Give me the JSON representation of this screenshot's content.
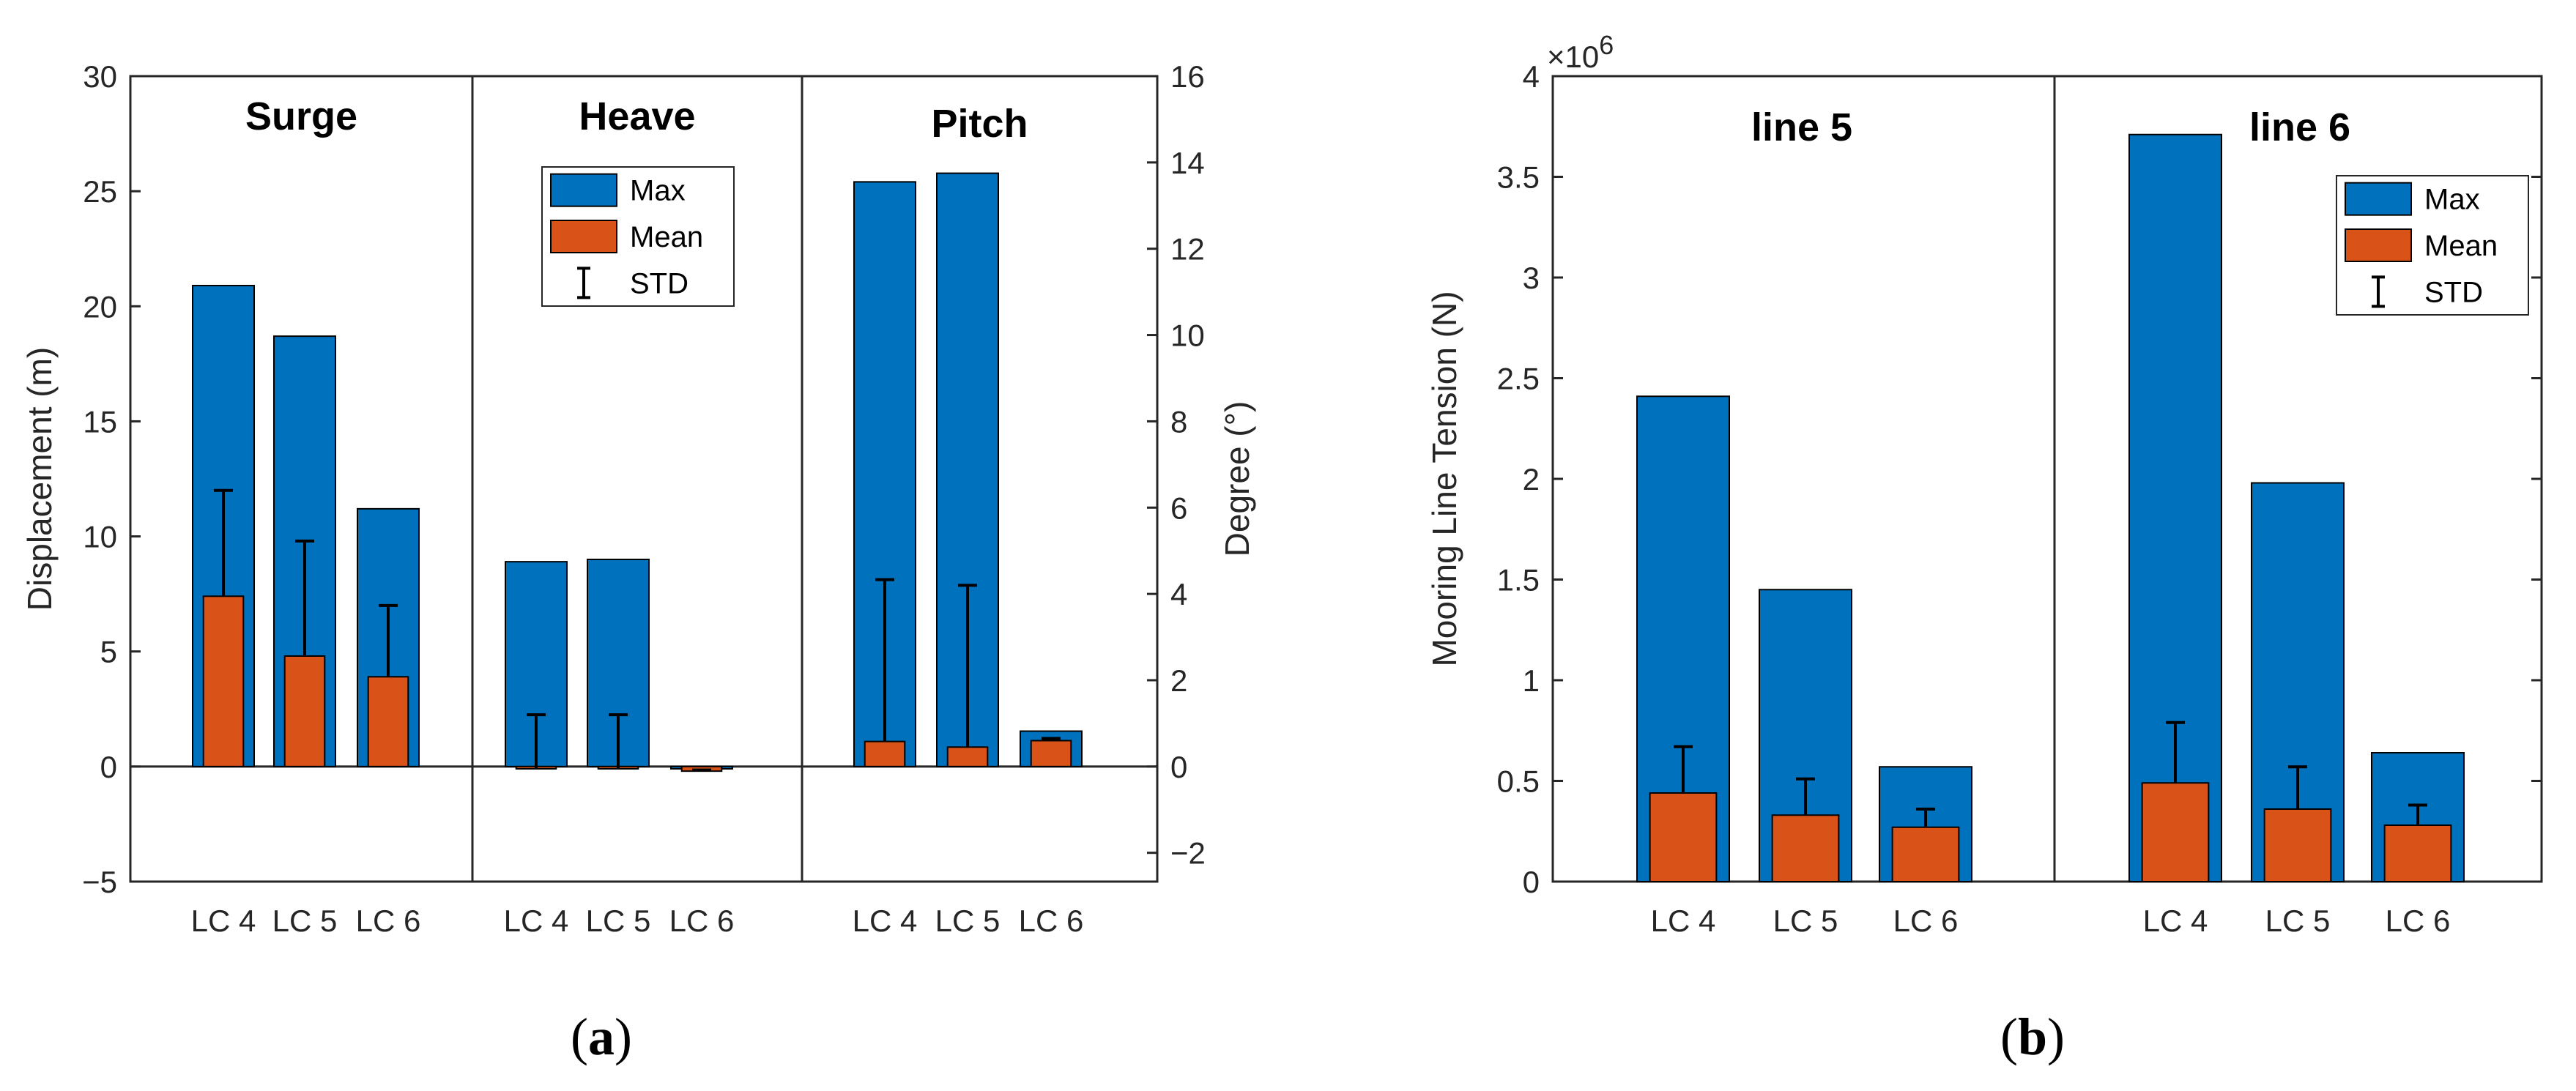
{
  "colors": {
    "max": "#0072BD",
    "mean": "#D95319",
    "axis": "#262626",
    "err": "#000000"
  },
  "legend": {
    "max": "Max",
    "mean": "Mean",
    "std": "STD"
  },
  "chart_data": [
    {
      "id": "a",
      "type": "bar",
      "caption_prefix": "(",
      "caption_letter": "a",
      "caption_suffix": ")",
      "ylabel_left": "Displacement (m)",
      "ylabel_right": "Degree (°)",
      "ylim_left": [
        -5,
        30
      ],
      "ylim_right": [
        -2.667,
        16
      ],
      "yticks_left": [
        -5,
        0,
        5,
        10,
        15,
        20,
        25,
        30
      ],
      "yticks_left_labels": [
        "−5",
        "0",
        "5",
        "10",
        "15",
        "20",
        "25",
        "30"
      ],
      "yticks_right": [
        -2,
        0,
        2,
        4,
        6,
        8,
        10,
        12,
        14,
        16
      ],
      "yticks_right_labels": [
        "−2",
        "0",
        "2",
        "4",
        "6",
        "8",
        "10",
        "12",
        "14",
        "16"
      ],
      "legend_panel": 1,
      "panels": [
        {
          "title": "Surge",
          "axis": "left",
          "categories": [
            "LC 4",
            "LC 5",
            "LC 6"
          ],
          "max": [
            20.9,
            18.7,
            11.2
          ],
          "mean": [
            7.4,
            4.8,
            3.9
          ],
          "std": [
            4.6,
            5.0,
            3.1
          ]
        },
        {
          "title": "Heave",
          "axis": "left",
          "categories": [
            "LC 4",
            "LC 5",
            "LC 6"
          ],
          "max": [
            8.9,
            9.0,
            -0.1
          ],
          "mean": [
            -0.1,
            -0.1,
            -0.2
          ],
          "std": [
            2.35,
            2.35,
            0.05
          ]
        },
        {
          "title": "Pitch",
          "axis": "right",
          "categories": [
            "LC 4",
            "LC 5",
            "LC 6"
          ],
          "max": [
            13.55,
            13.75,
            0.82
          ],
          "mean": [
            0.58,
            0.45,
            0.6
          ],
          "std": [
            3.75,
            3.75,
            0.05
          ]
        }
      ]
    },
    {
      "id": "b",
      "type": "bar",
      "caption_prefix": "(",
      "caption_letter": "b",
      "caption_suffix": ")",
      "ylabel": "Mooring Line Tension (N)",
      "exponent_base": "×10",
      "exponent_power": "6",
      "ylim": [
        0,
        4
      ],
      "yticks": [
        0,
        0.5,
        1,
        1.5,
        2,
        2.5,
        3,
        3.5,
        4
      ],
      "yticks_labels": [
        "0",
        "0.5",
        "1",
        "1.5",
        "2",
        "2.5",
        "3",
        "3.5",
        "4"
      ],
      "legend_panel": 1,
      "panels": [
        {
          "title": "line 5",
          "categories": [
            "LC 4",
            "LC 5",
            "LC 6"
          ],
          "max": [
            2.41,
            1.45,
            0.57
          ],
          "mean": [
            0.44,
            0.33,
            0.27
          ],
          "std": [
            0.23,
            0.18,
            0.09
          ]
        },
        {
          "title": "line 6",
          "categories": [
            "LC 4",
            "LC 5",
            "LC 6"
          ],
          "max": [
            3.71,
            1.98,
            0.64
          ],
          "mean": [
            0.49,
            0.36,
            0.28
          ],
          "std": [
            0.3,
            0.21,
            0.1
          ]
        }
      ]
    }
  ]
}
